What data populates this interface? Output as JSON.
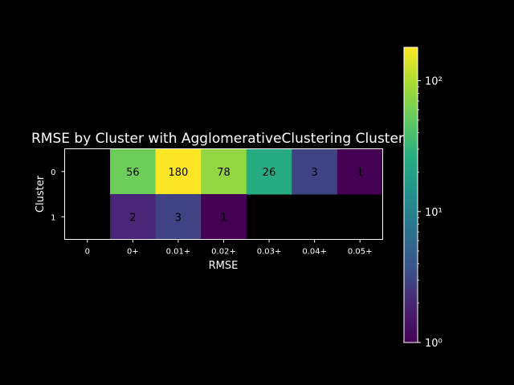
{
  "chart_data": {
    "type": "heatmap",
    "title": "RMSE by Cluster with AgglomerativeClustering Clustering",
    "xlabel": "RMSE",
    "ylabel": "Cluster",
    "x_categories": [
      "0",
      "0+",
      "0.01+",
      "0.02+",
      "0.03+",
      "0.04+",
      "0.05+"
    ],
    "y_categories": [
      "0",
      "1"
    ],
    "values": [
      [
        null,
        56,
        180,
        78,
        26,
        3,
        1
      ],
      [
        null,
        2,
        3,
        1,
        null,
        null,
        null
      ]
    ],
    "colorbar": {
      "scale": "log",
      "range": [
        1,
        180
      ],
      "colormap": "viridis",
      "tick_labels": [
        "10⁰",
        "10¹",
        "10²"
      ]
    },
    "background": "#000000",
    "foreground": "#ffffff"
  }
}
